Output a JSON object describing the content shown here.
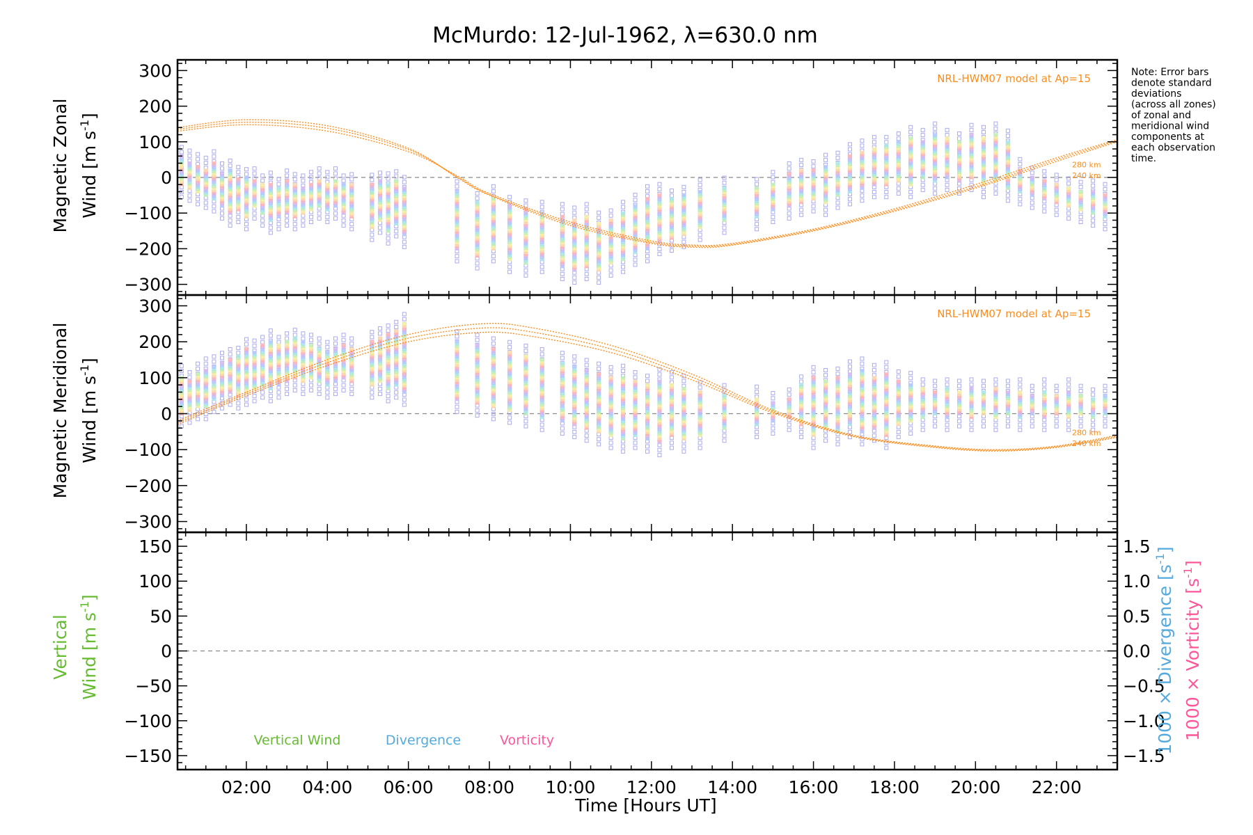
{
  "title": "McMurdo: 12-Jul-1962, λ=630.0 nm",
  "note_lines": [
    "Note: Error bars",
    "denote standard",
    "deviations",
    "(across all zones)",
    "of zonal and",
    "meridional wind",
    "components at",
    "each observation",
    "time."
  ],
  "colors": {
    "model": "#ff8c1a",
    "vertical": "#66bb33",
    "divergence": "#55aadd",
    "vorticity": "#ff5599",
    "error_bar": "#aaaaee",
    "point_palette": [
      "#ffb3b3",
      "#ffd9a8",
      "#f7f0a0",
      "#bff0b3",
      "#a8e8e8",
      "#b3c8ff",
      "#d4b8f0"
    ]
  },
  "chart_data": [
    {
      "type": "scatter",
      "panel": "zonal",
      "ylabel_line1": "Magnetic Zonal",
      "ylabel_line2": "Wind [m s",
      "ylabel_sup": "-1",
      "ylabel_close": "]",
      "ylim": [
        -330,
        330
      ],
      "yticks": [
        "300",
        "200",
        "100",
        "0",
        "−100",
        "−200",
        "−300"
      ],
      "ytick_values": [
        300,
        200,
        100,
        0,
        -100,
        -200,
        -300
      ],
      "xlim": [
        0.3,
        23.5
      ],
      "model_label": "NRL-HWM07 model at Ap=15",
      "altitude_labels": [
        "280 km",
        "240 km"
      ],
      "model_curves": [
        {
          "altitude": "280 km",
          "x": [
            0.3,
            2,
            4,
            6,
            7.2,
            8,
            10,
            12,
            13.1,
            14,
            16,
            18,
            20,
            22,
            23.5
          ],
          "y": [
            140,
            162,
            145,
            82,
            0,
            -50,
            -135,
            -185,
            -196,
            -190,
            -150,
            -95,
            -30,
            45,
            100
          ]
        },
        {
          "altitude": "260 km",
          "x": [
            0.3,
            2,
            4,
            6,
            7.2,
            8,
            10,
            12,
            13.1,
            14,
            16,
            18,
            20,
            22,
            23.5
          ],
          "y": [
            135,
            155,
            138,
            78,
            2,
            -48,
            -130,
            -182,
            -193,
            -188,
            -148,
            -92,
            -26,
            50,
            103
          ]
        },
        {
          "altitude": "240 km",
          "x": [
            0.3,
            2,
            4,
            6,
            7.2,
            8,
            10,
            12,
            13.1,
            14,
            16,
            18,
            20,
            22,
            23.5
          ],
          "y": [
            130,
            148,
            130,
            72,
            5,
            -45,
            -125,
            -178,
            -190,
            -185,
            -145,
            -88,
            -20,
            55,
            106
          ]
        }
      ],
      "observations": [
        {
          "x": 0.4,
          "lo": -20,
          "hi": 60
        },
        {
          "x": 0.6,
          "lo": -30,
          "hi": 40
        },
        {
          "x": 0.8,
          "lo": -40,
          "hi": 30
        },
        {
          "x": 1.0,
          "lo": -50,
          "hi": 20
        },
        {
          "x": 1.2,
          "lo": -60,
          "hi": 40
        },
        {
          "x": 1.4,
          "lo": -80,
          "hi": 10
        },
        {
          "x": 1.6,
          "lo": -100,
          "hi": 20
        },
        {
          "x": 1.8,
          "lo": -90,
          "hi": -5
        },
        {
          "x": 2.0,
          "lo": -110,
          "hi": 0
        },
        {
          "x": 2.2,
          "lo": -80,
          "hi": -10
        },
        {
          "x": 2.4,
          "lo": -100,
          "hi": -20
        },
        {
          "x": 2.6,
          "lo": -120,
          "hi": -20
        },
        {
          "x": 2.8,
          "lo": -110,
          "hi": -30
        },
        {
          "x": 3.0,
          "lo": -100,
          "hi": -10
        },
        {
          "x": 3.2,
          "lo": -110,
          "hi": -20
        },
        {
          "x": 3.4,
          "lo": -100,
          "hi": -30
        },
        {
          "x": 3.6,
          "lo": -90,
          "hi": -20
        },
        {
          "x": 3.8,
          "lo": -80,
          "hi": -10
        },
        {
          "x": 4.0,
          "lo": -90,
          "hi": -20
        },
        {
          "x": 4.2,
          "lo": -80,
          "hi": -10
        },
        {
          "x": 4.4,
          "lo": -100,
          "hi": -20
        },
        {
          "x": 4.6,
          "lo": -110,
          "hi": -20
        },
        {
          "x": 5.1,
          "lo": -140,
          "hi": -20
        },
        {
          "x": 5.3,
          "lo": -120,
          "hi": -10
        },
        {
          "x": 5.5,
          "lo": -150,
          "hi": -20
        },
        {
          "x": 5.7,
          "lo": -130,
          "hi": -10
        },
        {
          "x": 5.9,
          "lo": -160,
          "hi": -30
        },
        {
          "x": 7.2,
          "lo": -200,
          "hi": -40
        },
        {
          "x": 7.7,
          "lo": -220,
          "hi": -70
        },
        {
          "x": 8.1,
          "lo": -200,
          "hi": -60
        },
        {
          "x": 8.5,
          "lo": -230,
          "hi": -80
        },
        {
          "x": 8.9,
          "lo": -240,
          "hi": -90
        },
        {
          "x": 9.3,
          "lo": -230,
          "hi": -100
        },
        {
          "x": 9.8,
          "lo": -250,
          "hi": -110
        },
        {
          "x": 10.1,
          "lo": -260,
          "hi": -120
        },
        {
          "x": 10.4,
          "lo": -250,
          "hi": -110
        },
        {
          "x": 10.7,
          "lo": -260,
          "hi": -130
        },
        {
          "x": 11.0,
          "lo": -240,
          "hi": -120
        },
        {
          "x": 11.3,
          "lo": -230,
          "hi": -100
        },
        {
          "x": 11.6,
          "lo": -210,
          "hi": -80
        },
        {
          "x": 11.9,
          "lo": -200,
          "hi": -60
        },
        {
          "x": 12.2,
          "lo": -180,
          "hi": -50
        },
        {
          "x": 12.5,
          "lo": -170,
          "hi": -60
        },
        {
          "x": 12.8,
          "lo": -160,
          "hi": -50
        },
        {
          "x": 13.2,
          "lo": -140,
          "hi": -40
        },
        {
          "x": 13.8,
          "lo": -120,
          "hi": -30
        },
        {
          "x": 14.6,
          "lo": -110,
          "hi": -30
        },
        {
          "x": 15.0,
          "lo": -90,
          "hi": -20
        },
        {
          "x": 15.4,
          "lo": -80,
          "hi": 10
        },
        {
          "x": 15.7,
          "lo": -70,
          "hi": 20
        },
        {
          "x": 16.0,
          "lo": -60,
          "hi": 20
        },
        {
          "x": 16.3,
          "lo": -70,
          "hi": 30
        },
        {
          "x": 16.6,
          "lo": -50,
          "hi": 40
        },
        {
          "x": 16.9,
          "lo": -40,
          "hi": 60
        },
        {
          "x": 17.2,
          "lo": -30,
          "hi": 70
        },
        {
          "x": 17.5,
          "lo": -20,
          "hi": 80
        },
        {
          "x": 17.8,
          "lo": -20,
          "hi": 90
        },
        {
          "x": 18.1,
          "lo": -10,
          "hi": 100
        },
        {
          "x": 18.4,
          "lo": -20,
          "hi": 110
        },
        {
          "x": 18.7,
          "lo": 0,
          "hi": 100
        },
        {
          "x": 19.0,
          "lo": -10,
          "hi": 120
        },
        {
          "x": 19.3,
          "lo": 0,
          "hi": 110
        },
        {
          "x": 19.6,
          "lo": -10,
          "hi": 100
        },
        {
          "x": 19.9,
          "lo": 0,
          "hi": 120
        },
        {
          "x": 20.2,
          "lo": -20,
          "hi": 110
        },
        {
          "x": 20.5,
          "lo": -10,
          "hi": 120
        },
        {
          "x": 20.8,
          "lo": -30,
          "hi": 100
        },
        {
          "x": 21.1,
          "lo": -40,
          "hi": 20
        },
        {
          "x": 21.4,
          "lo": -50,
          "hi": 0
        },
        {
          "x": 21.7,
          "lo": -60,
          "hi": -10
        },
        {
          "x": 22.0,
          "lo": -70,
          "hi": -20
        },
        {
          "x": 22.3,
          "lo": -80,
          "hi": -30
        },
        {
          "x": 22.6,
          "lo": -90,
          "hi": -40
        },
        {
          "x": 22.9,
          "lo": -100,
          "hi": -40
        },
        {
          "x": 23.2,
          "lo": -110,
          "hi": -50
        }
      ]
    },
    {
      "type": "scatter",
      "panel": "meridional",
      "ylabel_line1": "Magnetic Meridional",
      "ylabel_line2": "Wind [m s",
      "ylabel_sup": "-1",
      "ylabel_close": "]",
      "ylim": [
        -330,
        330
      ],
      "yticks": [
        "300",
        "200",
        "100",
        "0",
        "−100",
        "−200",
        "−300"
      ],
      "ytick_values": [
        300,
        200,
        100,
        0,
        -100,
        -200,
        -300
      ],
      "xlim": [
        0.3,
        23.5
      ],
      "model_label": "NRL-HWM07 model at Ap=15",
      "altitude_labels": [
        "280 km",
        "240 km"
      ],
      "model_curves": [
        {
          "altitude": "280 km",
          "x": [
            0.3,
            2,
            4,
            6,
            7.8,
            9,
            11,
            13,
            15,
            17,
            19,
            20.5,
            22,
            23.5
          ],
          "y": [
            -20,
            60,
            150,
            220,
            250,
            240,
            190,
            110,
            10,
            -60,
            -90,
            -100,
            -90,
            -60
          ]
        },
        {
          "altitude": "260 km",
          "x": [
            0.3,
            2,
            4,
            6,
            7.8,
            9,
            11,
            13,
            15,
            17,
            19,
            20.5,
            22,
            23.5
          ],
          "y": [
            -25,
            55,
            142,
            210,
            238,
            228,
            180,
            102,
            6,
            -62,
            -92,
            -102,
            -92,
            -63
          ]
        },
        {
          "altitude": "240 km",
          "x": [
            0.3,
            2,
            4,
            6,
            7.8,
            9,
            11,
            13,
            15,
            17,
            19,
            20.5,
            22,
            23.5
          ],
          "y": [
            -30,
            50,
            134,
            200,
            226,
            216,
            170,
            94,
            2,
            -64,
            -94,
            -104,
            -94,
            -66
          ]
        }
      ],
      "observations": [
        {
          "x": 0.4,
          "lo": 0,
          "hi": 100
        },
        {
          "x": 0.6,
          "lo": 10,
          "hi": 90
        },
        {
          "x": 0.8,
          "lo": 20,
          "hi": 110
        },
        {
          "x": 1.0,
          "lo": 20,
          "hi": 120
        },
        {
          "x": 1.2,
          "lo": 40,
          "hi": 130
        },
        {
          "x": 1.4,
          "lo": 50,
          "hi": 140
        },
        {
          "x": 1.6,
          "lo": 60,
          "hi": 150
        },
        {
          "x": 1.8,
          "lo": 50,
          "hi": 160
        },
        {
          "x": 2.0,
          "lo": 60,
          "hi": 180
        },
        {
          "x": 2.2,
          "lo": 70,
          "hi": 170
        },
        {
          "x": 2.4,
          "lo": 80,
          "hi": 190
        },
        {
          "x": 2.6,
          "lo": 70,
          "hi": 200
        },
        {
          "x": 2.8,
          "lo": 80,
          "hi": 190
        },
        {
          "x": 3.0,
          "lo": 90,
          "hi": 200
        },
        {
          "x": 3.2,
          "lo": 100,
          "hi": 210
        },
        {
          "x": 3.4,
          "lo": 90,
          "hi": 200
        },
        {
          "x": 3.6,
          "lo": 100,
          "hi": 190
        },
        {
          "x": 3.8,
          "lo": 90,
          "hi": 180
        },
        {
          "x": 4.0,
          "lo": 80,
          "hi": 170
        },
        {
          "x": 4.2,
          "lo": 90,
          "hi": 180
        },
        {
          "x": 4.4,
          "lo": 100,
          "hi": 190
        },
        {
          "x": 4.6,
          "lo": 90,
          "hi": 180
        },
        {
          "x": 5.1,
          "lo": 80,
          "hi": 200
        },
        {
          "x": 5.3,
          "lo": 90,
          "hi": 210
        },
        {
          "x": 5.5,
          "lo": 70,
          "hi": 220
        },
        {
          "x": 5.7,
          "lo": 80,
          "hi": 230
        },
        {
          "x": 5.9,
          "lo": 60,
          "hi": 250
        },
        {
          "x": 7.2,
          "lo": 40,
          "hi": 200
        },
        {
          "x": 7.7,
          "lo": 30,
          "hi": 190
        },
        {
          "x": 8.1,
          "lo": 20,
          "hi": 180
        },
        {
          "x": 8.5,
          "lo": 10,
          "hi": 170
        },
        {
          "x": 8.9,
          "lo": 0,
          "hi": 160
        },
        {
          "x": 9.3,
          "lo": -10,
          "hi": 150
        },
        {
          "x": 9.8,
          "lo": -20,
          "hi": 140
        },
        {
          "x": 10.1,
          "lo": -30,
          "hi": 130
        },
        {
          "x": 10.4,
          "lo": -40,
          "hi": 120
        },
        {
          "x": 10.7,
          "lo": -50,
          "hi": 110
        },
        {
          "x": 11.0,
          "lo": -60,
          "hi": 100
        },
        {
          "x": 11.3,
          "lo": -70,
          "hi": 100
        },
        {
          "x": 11.6,
          "lo": -60,
          "hi": 90
        },
        {
          "x": 11.9,
          "lo": -70,
          "hi": 80
        },
        {
          "x": 12.2,
          "lo": -80,
          "hi": 90
        },
        {
          "x": 12.5,
          "lo": -60,
          "hi": 80
        },
        {
          "x": 12.8,
          "lo": -70,
          "hi": 70
        },
        {
          "x": 13.2,
          "lo": -60,
          "hi": 60
        },
        {
          "x": 13.8,
          "lo": -40,
          "hi": 50
        },
        {
          "x": 14.6,
          "lo": -30,
          "hi": 40
        },
        {
          "x": 15.0,
          "lo": -20,
          "hi": 30
        },
        {
          "x": 15.4,
          "lo": -10,
          "hi": 40
        },
        {
          "x": 15.7,
          "lo": -30,
          "hi": 80
        },
        {
          "x": 16.0,
          "lo": -60,
          "hi": 100
        },
        {
          "x": 16.3,
          "lo": -40,
          "hi": 90
        },
        {
          "x": 16.6,
          "lo": -50,
          "hi": 100
        },
        {
          "x": 16.9,
          "lo": -30,
          "hi": 110
        },
        {
          "x": 17.2,
          "lo": -50,
          "hi": 120
        },
        {
          "x": 17.5,
          "lo": -40,
          "hi": 100
        },
        {
          "x": 17.8,
          "lo": -60,
          "hi": 110
        },
        {
          "x": 18.1,
          "lo": -30,
          "hi": 90
        },
        {
          "x": 18.4,
          "lo": -20,
          "hi": 80
        },
        {
          "x": 18.7,
          "lo": -10,
          "hi": 70
        },
        {
          "x": 19.0,
          "lo": 0,
          "hi": 60
        },
        {
          "x": 19.3,
          "lo": -10,
          "hi": 70
        },
        {
          "x": 19.6,
          "lo": 0,
          "hi": 60
        },
        {
          "x": 19.9,
          "lo": -10,
          "hi": 70
        },
        {
          "x": 20.2,
          "lo": 0,
          "hi": 60
        },
        {
          "x": 20.5,
          "lo": -10,
          "hi": 70
        },
        {
          "x": 20.8,
          "lo": 0,
          "hi": 60
        },
        {
          "x": 21.1,
          "lo": -10,
          "hi": 60
        },
        {
          "x": 21.4,
          "lo": 0,
          "hi": 50
        },
        {
          "x": 21.7,
          "lo": -10,
          "hi": 60
        },
        {
          "x": 22.0,
          "lo": 0,
          "hi": 50
        },
        {
          "x": 22.3,
          "lo": -10,
          "hi": 60
        },
        {
          "x": 22.6,
          "lo": 0,
          "hi": 50
        },
        {
          "x": 22.9,
          "lo": -10,
          "hi": 40
        },
        {
          "x": 23.2,
          "lo": 0,
          "hi": 50
        }
      ]
    },
    {
      "type": "line",
      "panel": "vertical",
      "ylabel_line1": "Vertical",
      "ylabel_line2": "Wind [m s",
      "ylabel_sup": "-1",
      "ylabel_close": "]",
      "ylim": [
        -170,
        170
      ],
      "yticks": [
        "150",
        "100",
        "50",
        "0",
        "−50",
        "−100",
        "−150"
      ],
      "ytick_values": [
        150,
        100,
        50,
        0,
        -50,
        -100,
        -150
      ],
      "y2lim": [
        -1.7,
        1.7
      ],
      "y2ticks": [
        "1.5",
        "1.0",
        "0.5",
        "0.0",
        "−0.5",
        "−1.0",
        "−1.5"
      ],
      "y2tick_values": [
        1.5,
        1.0,
        0.5,
        0.0,
        -0.5,
        -1.0,
        -1.5
      ],
      "y2label_div": "1000 × Divergence [s",
      "y2label_vor": "1000 × Vorticity [s",
      "y2label_sup": "-1",
      "y2label_close": "]",
      "legend": [
        "Vertical Wind",
        "Divergence",
        "Vorticity"
      ],
      "xlim": [
        0.3,
        23.5
      ],
      "xticks": [
        "02:00",
        "04:00",
        "06:00",
        "08:00",
        "10:00",
        "12:00",
        "14:00",
        "16:00",
        "18:00",
        "20:00",
        "22:00"
      ],
      "xtick_values": [
        2,
        4,
        6,
        8,
        10,
        12,
        14,
        16,
        18,
        20,
        22
      ],
      "xlabel": "Time [Hours UT]"
    }
  ]
}
